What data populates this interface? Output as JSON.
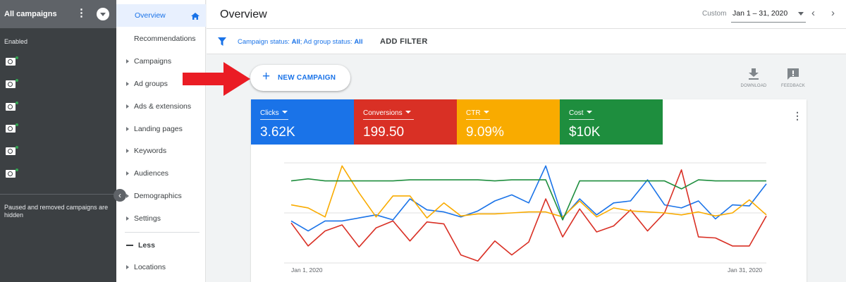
{
  "rail": {
    "title": "All campaigns",
    "enabled_label": "Enabled",
    "paused_note": "Paused and removed campaigns are hidden",
    "status_color": "#34a853"
  },
  "menu": {
    "overview": "Overview",
    "recommendations": "Recommendations",
    "items": [
      "Campaigns",
      "Ad groups",
      "Ads & extensions",
      "Landing pages",
      "Keywords",
      "Audiences",
      "Demographics",
      "Settings"
    ],
    "less": "Less",
    "locations": "Locations"
  },
  "header": {
    "title": "Overview",
    "date_label": "Custom",
    "date_range": "Jan 1 – 31, 2020"
  },
  "filters": {
    "campaign_status_label": "Campaign status:",
    "campaign_status_value": "All",
    "separator": ";",
    "ad_group_status_label": "Ad group status:",
    "ad_group_status_value": "All",
    "add_filter": "ADD FILTER"
  },
  "new_campaign": {
    "label": "NEW CAMPAIGN"
  },
  "tools": {
    "download": "DOWNLOAD",
    "feedback": "FEEDBACK"
  },
  "metrics": [
    {
      "name": "Clicks",
      "value": "3.62K",
      "color": "#1a73e8"
    },
    {
      "name": "Conversions",
      "value": "199.50",
      "color": "#d93025"
    },
    {
      "name": "CTR",
      "value": "9.09%",
      "color": "#f9ab00"
    },
    {
      "name": "Cost",
      "value": "$10K",
      "color": "#1e8e3e"
    }
  ],
  "chart_data": {
    "type": "line",
    "x_start_label": "Jan 1, 2020",
    "x_end_label": "Jan 31, 2020",
    "y_axis_labels": "none",
    "gridlines": 3,
    "series": [
      {
        "name": "Clicks",
        "color": "#1a73e8",
        "values": [
          0.42,
          0.32,
          0.42,
          0.42,
          0.45,
          0.48,
          0.43,
          0.64,
          0.53,
          0.51,
          0.46,
          0.52,
          0.62,
          0.68,
          0.6,
          0.97,
          0.45,
          0.64,
          0.48,
          0.6,
          0.62,
          0.83,
          0.58,
          0.55,
          0.62,
          0.44,
          0.58,
          0.57,
          0.79
        ]
      },
      {
        "name": "Conversions",
        "color": "#d93025",
        "values": [
          0.4,
          0.17,
          0.32,
          0.38,
          0.16,
          0.35,
          0.42,
          0.22,
          0.41,
          0.39,
          0.08,
          0.02,
          0.22,
          0.08,
          0.21,
          0.64,
          0.26,
          0.54,
          0.31,
          0.37,
          0.53,
          0.32,
          0.5,
          0.93,
          0.26,
          0.25,
          0.17,
          0.17,
          0.47
        ]
      },
      {
        "name": "CTR",
        "color": "#f9ab00",
        "values": [
          0.58,
          0.55,
          0.46,
          0.97,
          0.7,
          0.46,
          0.67,
          0.67,
          0.45,
          0.6,
          0.47,
          0.49,
          0.49,
          0.5,
          0.51,
          0.51,
          0.46,
          0.62,
          0.46,
          0.55,
          0.52,
          0.51,
          0.5,
          0.48,
          0.51,
          0.47,
          0.5,
          0.63,
          0.48
        ]
      },
      {
        "name": "Cost",
        "color": "#1e8e3e",
        "values": [
          0.82,
          0.84,
          0.82,
          0.82,
          0.82,
          0.82,
          0.82,
          0.83,
          0.83,
          0.83,
          0.83,
          0.83,
          0.82,
          0.83,
          0.83,
          0.83,
          0.43,
          0.82,
          0.82,
          0.82,
          0.82,
          0.82,
          0.82,
          0.74,
          0.83,
          0.82,
          0.82,
          0.82,
          0.82
        ]
      }
    ]
  }
}
